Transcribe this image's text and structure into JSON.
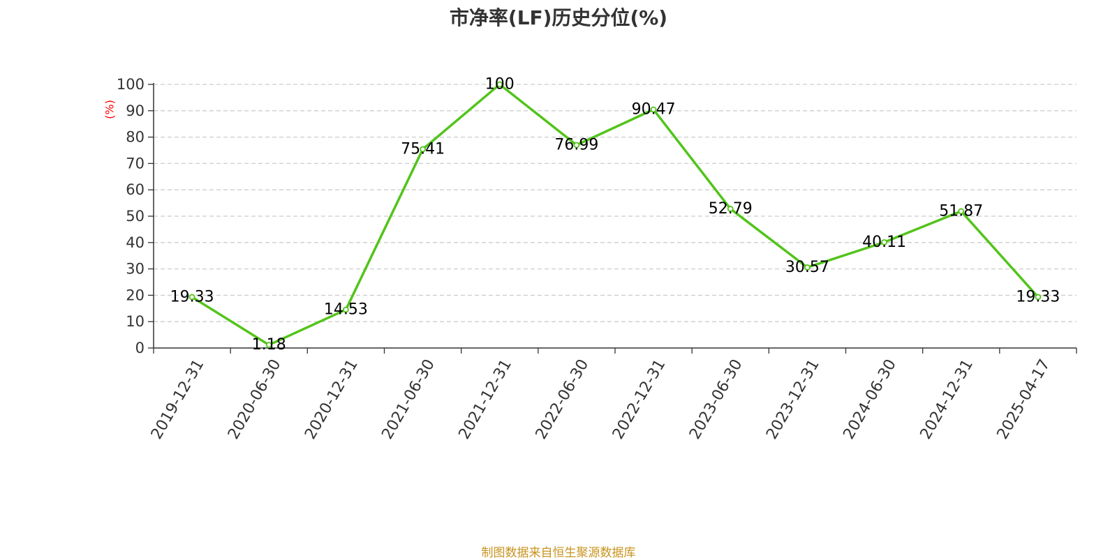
{
  "chart_data": {
    "type": "line",
    "title": "市净率(LF)历史分位(%)",
    "ylabel": "(%)",
    "xlabel": "",
    "categories": [
      "2019-12-31",
      "2020-06-30",
      "2020-12-31",
      "2021-06-30",
      "2021-12-31",
      "2022-06-30",
      "2022-12-31",
      "2023-06-30",
      "2023-12-31",
      "2024-06-30",
      "2024-12-31",
      "2025-04-17"
    ],
    "values": [
      19.33,
      1.18,
      14.53,
      75.41,
      100,
      76.99,
      90.47,
      52.79,
      30.57,
      40.11,
      51.87,
      19.33
    ],
    "data_labels": [
      "19.33",
      "1.18",
      "14.53",
      "75.41",
      "100",
      "76.99",
      "90.47",
      "52.79",
      "30.57",
      "40.11",
      "51.87",
      "19.33"
    ],
    "ylim": [
      0,
      100
    ],
    "yticks": [
      "0",
      "10",
      "20",
      "30",
      "40",
      "50",
      "60",
      "70",
      "80",
      "90",
      "100"
    ],
    "grid": true,
    "colors": {
      "line": "#52c41a",
      "ylabel": "#ff0000",
      "grid": "#cccccc",
      "axis": "#333333"
    }
  },
  "footer": {
    "source_text": "制图数据来自恒生聚源数据库"
  }
}
